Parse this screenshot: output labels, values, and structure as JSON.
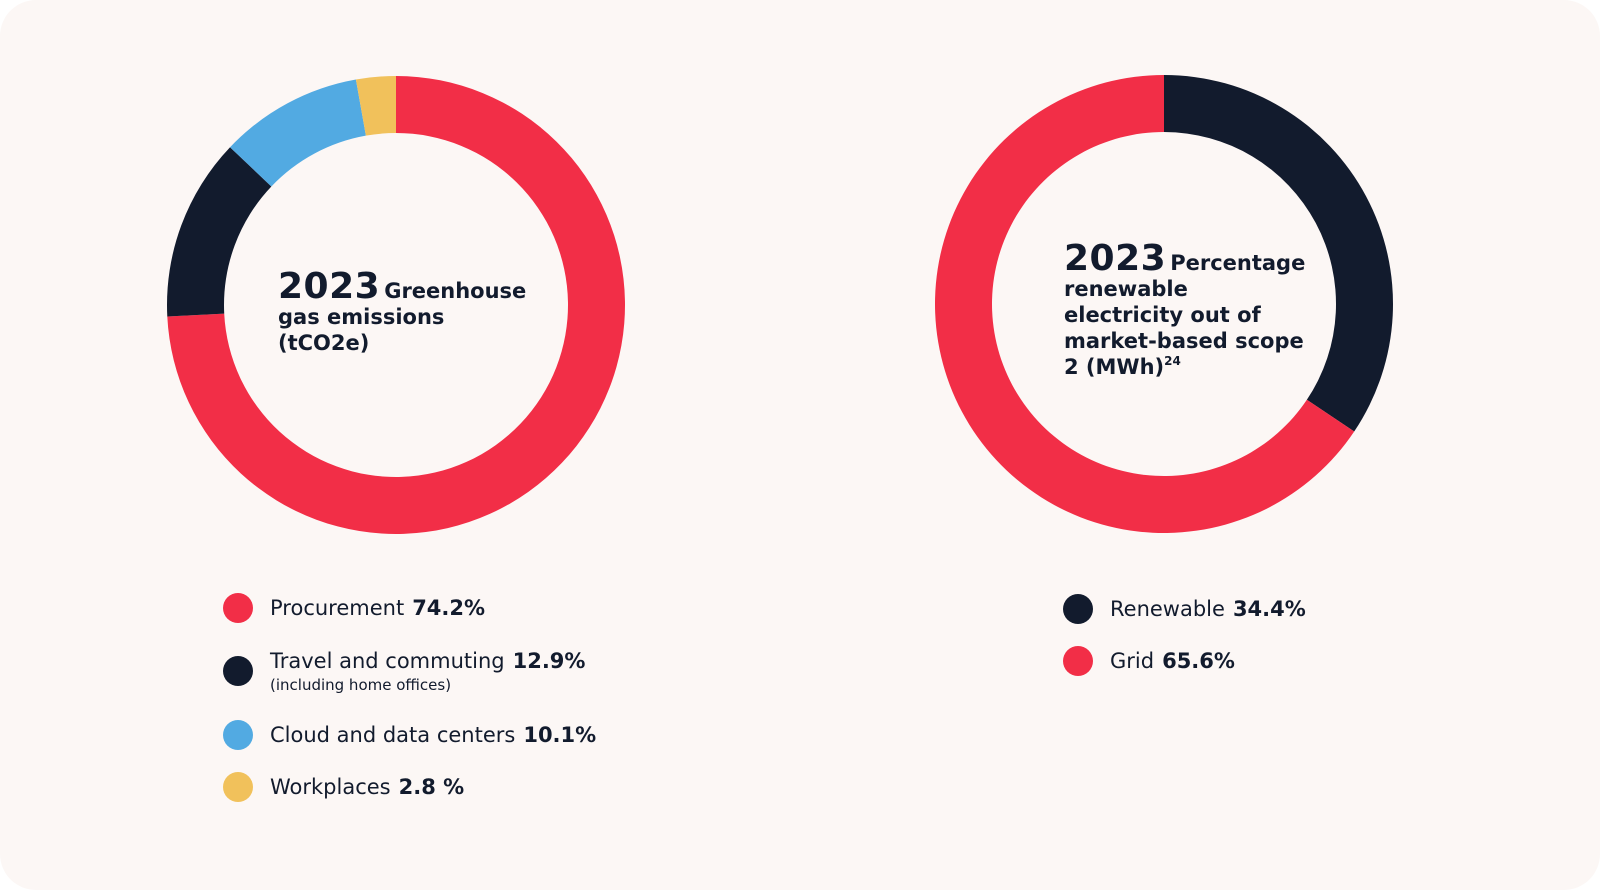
{
  "chart_data": [
    {
      "type": "pie",
      "title_year": "2023",
      "title_text": "Greenhouse gas emissions (tCO2e)",
      "slices": [
        {
          "label": "Procurement",
          "value_label": "74.2%",
          "value": 74.2,
          "color": "#f22e47"
        },
        {
          "label": "Travel and commuting",
          "sublabel": "(including home offices)",
          "value_label": "12.9%",
          "value": 12.9,
          "color": "#121b2d"
        },
        {
          "label": "Cloud and data centers",
          "value_label": "10.1%",
          "value": 10.1,
          "color": "#52aae2"
        },
        {
          "label": "Workplaces",
          "value_label": "2.8 %",
          "value": 2.8,
          "color": "#f1c15b"
        }
      ]
    },
    {
      "type": "pie",
      "title_year": "2023",
      "title_text": "Percentage renewable electricity out of market-based scope 2 (MWh)",
      "title_footnote": "24",
      "slices": [
        {
          "label": "Renewable",
          "value_label": "34.4%",
          "value": 34.4,
          "color": "#121b2d"
        },
        {
          "label": "Grid",
          "value_label": "65.6%",
          "value": 65.6,
          "color": "#f22e47"
        }
      ]
    }
  ]
}
